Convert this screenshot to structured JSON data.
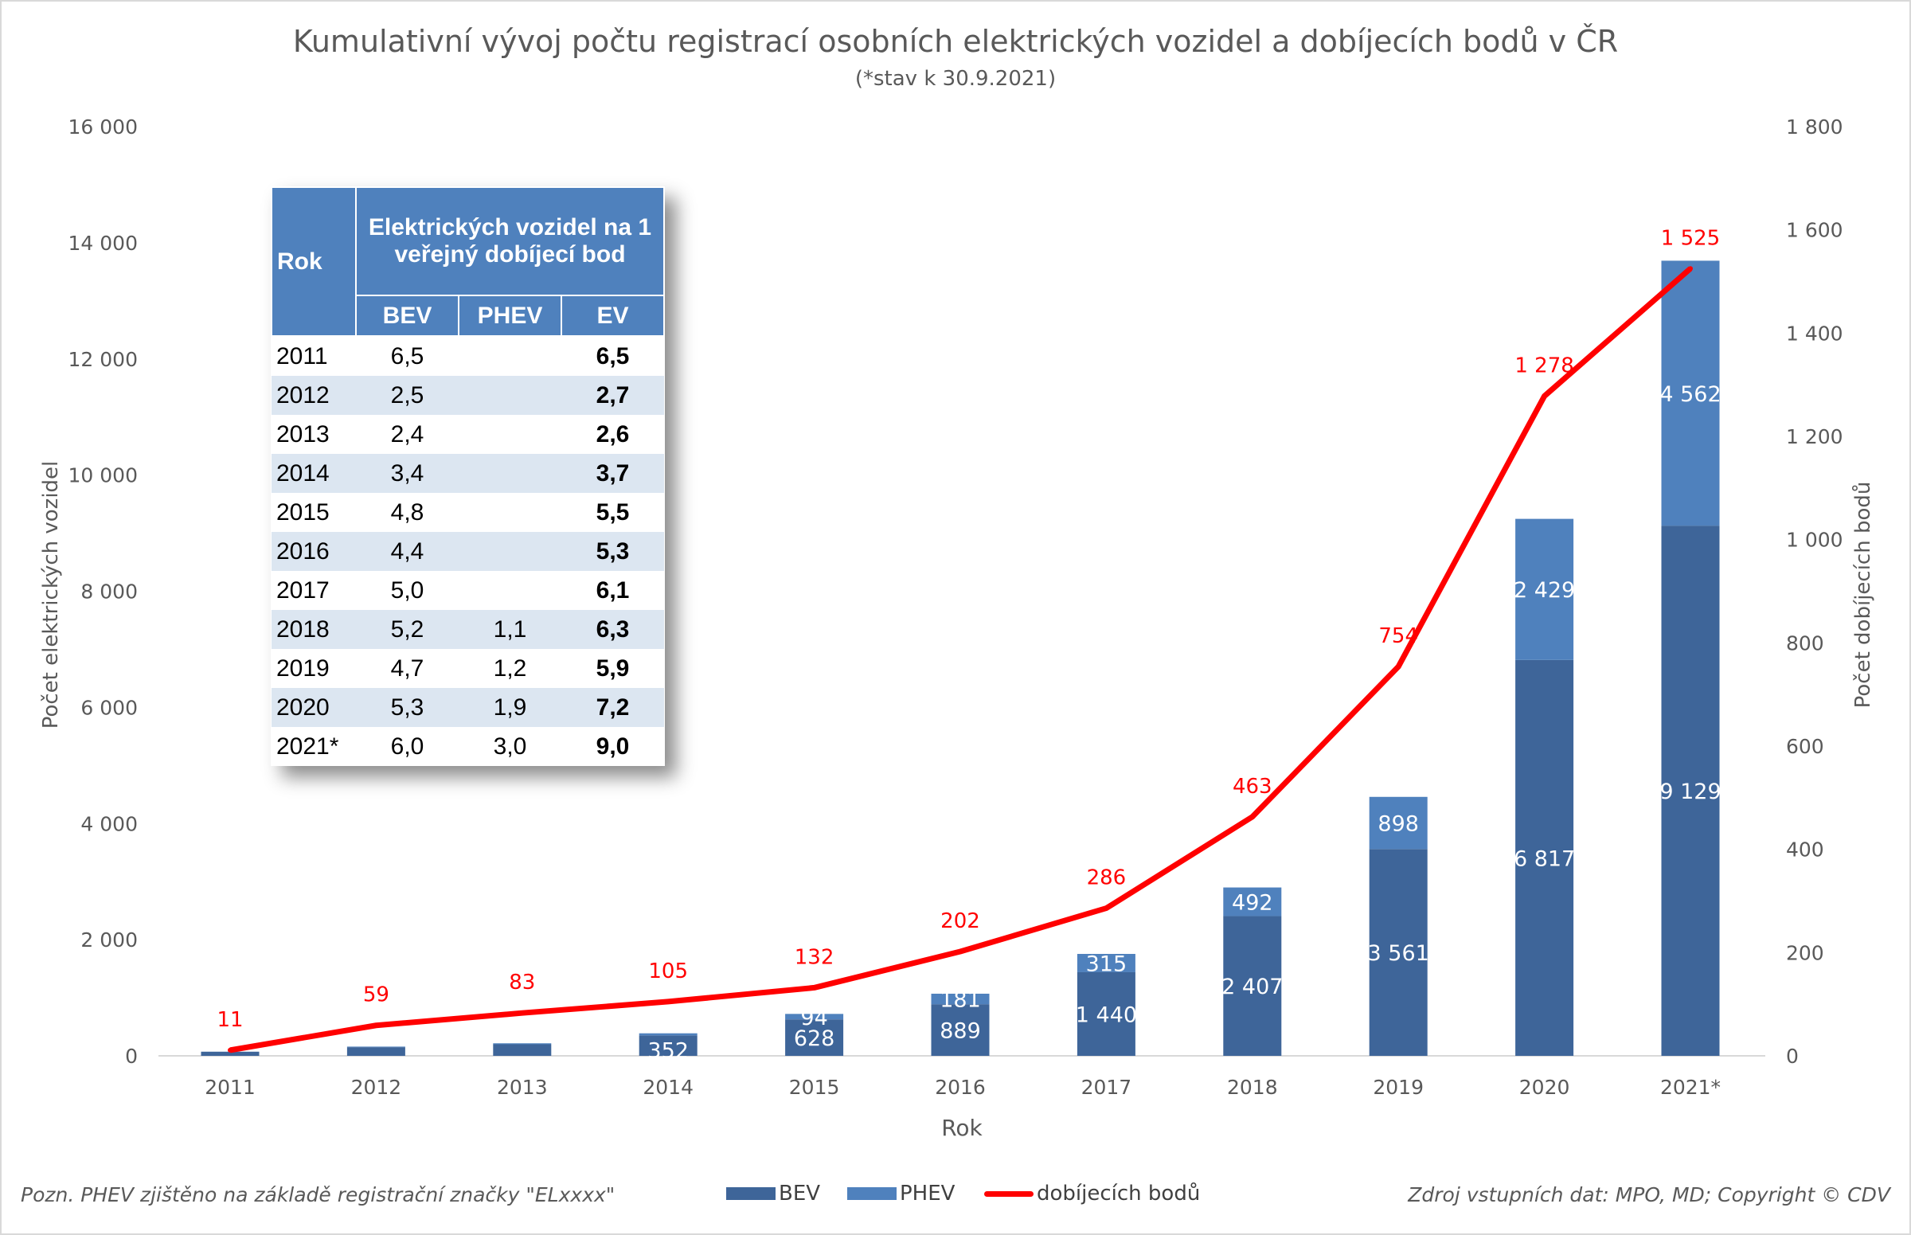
{
  "chart_data": {
    "type": "bar",
    "title": "Kumulativní vývoj počtu registrací osobních elektrických vozidel a dobíjecích bodů v ČR",
    "subtitle": "(*stav k 30.9.2021)",
    "xlabel": "Rok",
    "ylabel": "Počet elektrických vozidel",
    "y2label": "Počet dobíjecích bodů",
    "categories": [
      "2011",
      "2012",
      "2013",
      "2014",
      "2015",
      "2016",
      "2017",
      "2018",
      "2019",
      "2020",
      "2021*"
    ],
    "ylim": [
      0,
      16000
    ],
    "y2lim": [
      0,
      1800
    ],
    "yticks": [
      "0",
      "2 000",
      "4 000",
      "6 000",
      "8 000",
      "10 000",
      "12 000",
      "14 000",
      "16 000"
    ],
    "y2ticks": [
      "0",
      "200",
      "400",
      "600",
      "800",
      "1 000",
      "1 200",
      "1 400",
      "1 600",
      "1 800"
    ],
    "stacked": true,
    "series": [
      {
        "name": "BEV",
        "type": "bar",
        "color": "#3e6599",
        "values": [
          71,
          149,
          199,
          352,
          628,
          889,
          1440,
          2407,
          3561,
          6817,
          9129
        ],
        "labels": [
          "",
          "",
          "",
          "352",
          "628",
          "889",
          "1 440",
          "2 407",
          "3 561",
          "6 817",
          "9 129"
        ]
      },
      {
        "name": "PHEV",
        "type": "bar",
        "color": "#4f81bd",
        "values": [
          1,
          10,
          17,
          36,
          94,
          181,
          315,
          492,
          898,
          2429,
          4562
        ],
        "labels": [
          "",
          "",
          "",
          "",
          "94",
          "181",
          "315",
          "492",
          "898",
          "2 429",
          "4 562"
        ]
      },
      {
        "name": "dobíjecích bodů",
        "type": "line",
        "axis": "right",
        "color": "#ff0000",
        "values": [
          11,
          59,
          83,
          105,
          132,
          202,
          286,
          463,
          754,
          1278,
          1525
        ],
        "labels": [
          "11",
          "59",
          "83",
          "105",
          "132",
          "202",
          "286",
          "463",
          "754",
          "1 278",
          "1 525"
        ]
      }
    ],
    "legend": "bottom",
    "grid": false
  },
  "table": {
    "header_rok": "Rok",
    "header_group": "Elektrických vozidel na 1 veřejný dobíjecí bod",
    "columns": [
      "BEV",
      "PHEV",
      "EV"
    ],
    "rows": [
      [
        "2011",
        "6,5",
        "",
        "6,5"
      ],
      [
        "2012",
        "2,5",
        "",
        "2,7"
      ],
      [
        "2013",
        "2,4",
        "",
        "2,6"
      ],
      [
        "2014",
        "3,4",
        "",
        "3,7"
      ],
      [
        "2015",
        "4,8",
        "",
        "5,5"
      ],
      [
        "2016",
        "4,4",
        "",
        "5,3"
      ],
      [
        "2017",
        "5,0",
        "",
        "6,1"
      ],
      [
        "2018",
        "5,2",
        "1,1",
        "6,3"
      ],
      [
        "2019",
        "4,7",
        "1,2",
        "5,9"
      ],
      [
        "2020",
        "5,3",
        "1,9",
        "7,2"
      ],
      [
        "2021*",
        "6,0",
        "3,0",
        "9,0"
      ]
    ]
  },
  "footer": {
    "note": "Pozn. PHEV zjištěno na základě registrační značky \"ELxxxx\"",
    "source": "Zdroj vstupních dat: MPO, MD; Copyright © CDV"
  }
}
